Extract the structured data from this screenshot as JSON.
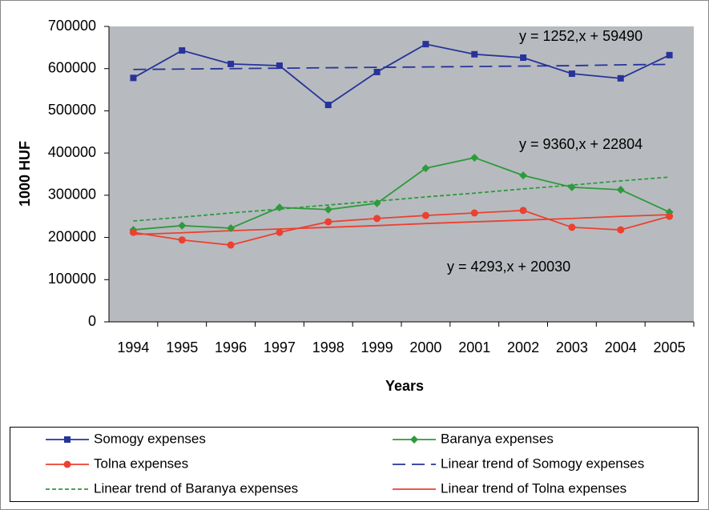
{
  "chart_data": {
    "type": "line",
    "x_label": "Years",
    "y_label": "1000 HUF",
    "categories": [
      "1994",
      "1995",
      "1996",
      "1997",
      "1998",
      "1999",
      "2000",
      "2001",
      "2002",
      "2003",
      "2004",
      "2005"
    ],
    "ylim": [
      0,
      700000
    ],
    "yticks": [
      0,
      100000,
      200000,
      300000,
      400000,
      500000,
      600000,
      700000
    ],
    "plot_background": "#b7bbbf",
    "series": [
      {
        "name": "Somogy expenses",
        "color": "#27339a",
        "marker": "square",
        "dash": "solid",
        "values": [
          578000,
          643000,
          611000,
          607000,
          514000,
          592000,
          658000,
          634000,
          626000,
          588000,
          577000,
          632000
        ]
      },
      {
        "name": "Baranya expenses",
        "color": "#2e9a3c",
        "marker": "diamond",
        "dash": "solid",
        "values": [
          218000,
          228000,
          222000,
          271000,
          266000,
          281000,
          364000,
          389000,
          347000,
          319000,
          313000,
          260000
        ]
      },
      {
        "name": "Tolna expenses",
        "color": "#ec4030",
        "marker": "circle",
        "dash": "solid",
        "values": [
          212000,
          194000,
          182000,
          212000,
          237000,
          245000,
          252000,
          258000,
          264000,
          224000,
          218000,
          250000
        ]
      },
      {
        "name": "Linear trend of Somogy expenses",
        "color": "#27339a",
        "marker": "none",
        "dash": "long",
        "values": [
          598000,
          599000,
          600000,
          601000,
          602000,
          603000,
          604000,
          605000,
          606000,
          607000,
          609000,
          610000
        ]
      },
      {
        "name": "Linear trend of Baranya expenses",
        "color": "#2e9a3c",
        "marker": "none",
        "dash": "short",
        "values": [
          239000,
          248000,
          258000,
          267000,
          277000,
          286000,
          296000,
          305000,
          315000,
          324000,
          334000,
          343000
        ]
      },
      {
        "name": "Linear trend of Tolna expenses",
        "color": "#ec4030",
        "marker": "none",
        "dash": "solid",
        "values": [
          207000,
          211000,
          216000,
          220000,
          224000,
          228000,
          233000,
          237000,
          241000,
          245000,
          250000,
          254000
        ]
      }
    ],
    "annotations": [
      "y = 1252,x + 59490",
      "y = 9360,x + 22804",
      "y = 4293,x + 20030"
    ]
  }
}
